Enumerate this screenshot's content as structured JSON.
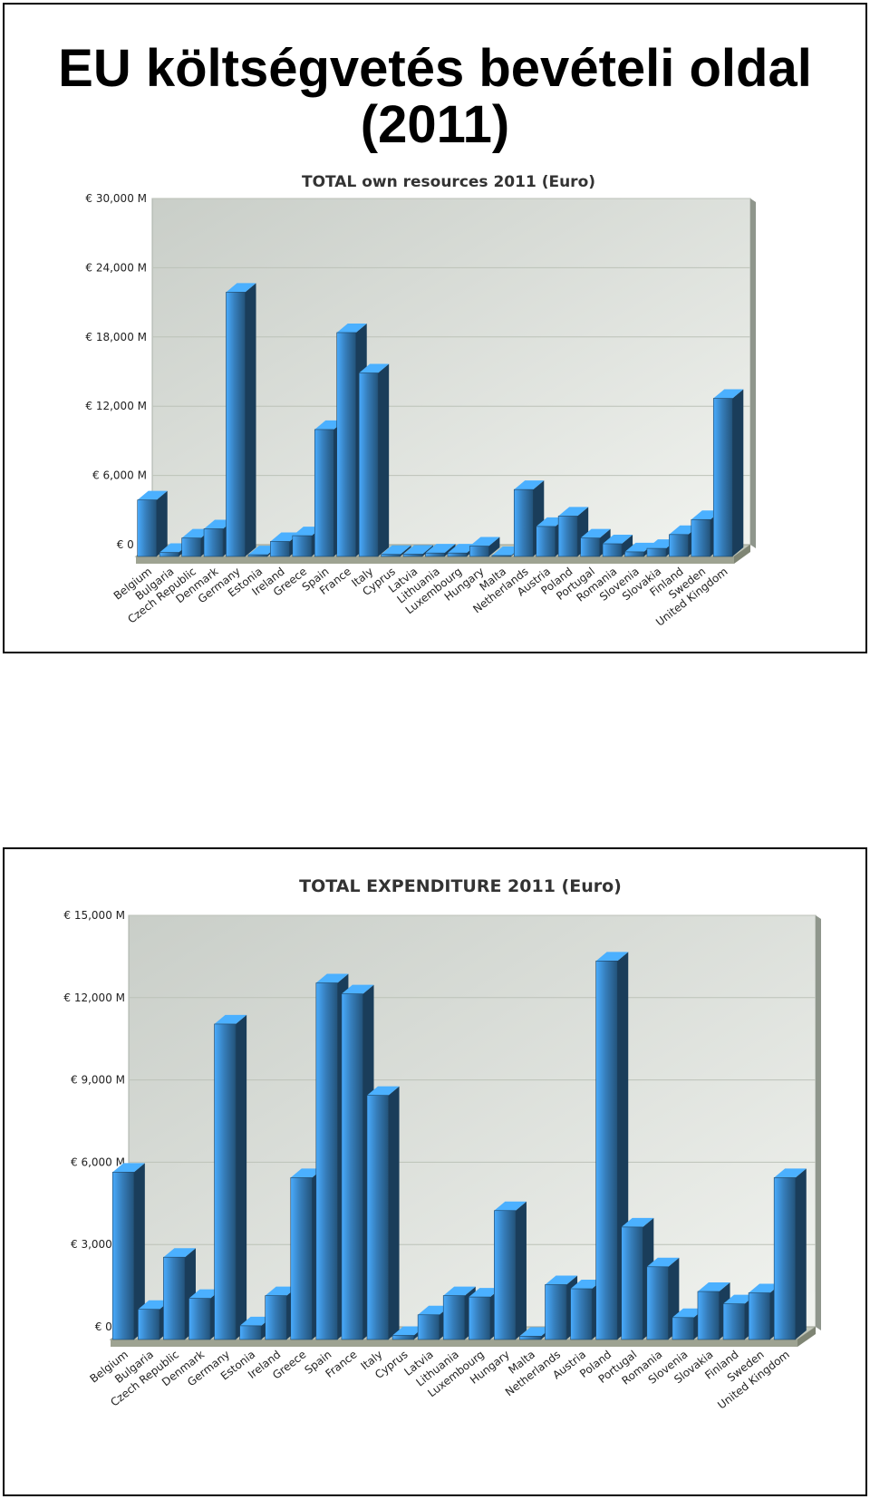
{
  "slide": {
    "title": "EU költségvetés bevételi oldal (2011)"
  },
  "chart_data": [
    {
      "type": "bar",
      "title": "TOTAL own resources 2011 (Euro)",
      "xlabel": "",
      "ylabel": "",
      "ylim": [
        0,
        30000
      ],
      "yticks": [
        0,
        6000,
        12000,
        18000,
        24000,
        30000
      ],
      "ytick_labels": [
        "€ 0 M",
        "€ 6,000 M",
        "€ 12,000 M",
        "€ 18,000 M",
        "€ 24,000 M",
        "€ 30,000 M"
      ],
      "grid": true,
      "legend": "none",
      "bar_color": "#2f6ea3",
      "categories": [
        "Belgium",
        "Bulgaria",
        "Czech Republic",
        "Denmark",
        "Germany",
        "Estonia",
        "Ireland",
        "Greece",
        "Spain",
        "France",
        "Italy",
        "Cyprus",
        "Latvia",
        "Lithuania",
        "Luxembourg",
        "Hungary",
        "Malta",
        "Netherlands",
        "Austria",
        "Poland",
        "Portugal",
        "Romania",
        "Slovenia",
        "Slovakia",
        "Finland",
        "Sweden",
        "United Kingdom"
      ],
      "values": [
        4900,
        350,
        1600,
        2400,
        22900,
        150,
        1300,
        1800,
        11000,
        19400,
        15900,
        180,
        200,
        300,
        300,
        900,
        80,
        5800,
        2600,
        3500,
        1600,
        1100,
        400,
        700,
        1900,
        3200,
        13700
      ]
    },
    {
      "type": "bar",
      "title": "TOTAL EXPENDITURE 2011 (Euro)",
      "xlabel": "",
      "ylabel": "",
      "ylim": [
        0,
        15000
      ],
      "yticks": [
        0,
        3000,
        6000,
        9000,
        12000,
        15000
      ],
      "ytick_labels": [
        "€ 0 M",
        "€ 3,000 M",
        "€ 6,000 M",
        "€ 9,000 M",
        "€ 12,000 M",
        "€ 15,000 M"
      ],
      "grid": true,
      "legend": "none",
      "bar_color": "#2f6ea3",
      "categories": [
        "Belgium",
        "Bulgaria",
        "Czech Republic",
        "Denmark",
        "Germany",
        "Estonia",
        "Ireland",
        "Greece",
        "Spain",
        "France",
        "Italy",
        "Cyprus",
        "Latvia",
        "Lithuania",
        "Luxembourg",
        "Hungary",
        "Malta",
        "Netherlands",
        "Austria",
        "Poland",
        "Portugal",
        "Romania",
        "Slovenia",
        "Slovakia",
        "Finland",
        "Sweden",
        "United Kingdom"
      ],
      "values": [
        6100,
        1100,
        3000,
        1500,
        11500,
        500,
        1600,
        5900,
        13000,
        12600,
        8900,
        150,
        900,
        1600,
        1550,
        4700,
        120,
        2000,
        1850,
        13800,
        4100,
        2650,
        800,
        1750,
        1300,
        1700,
        5900
      ]
    }
  ]
}
